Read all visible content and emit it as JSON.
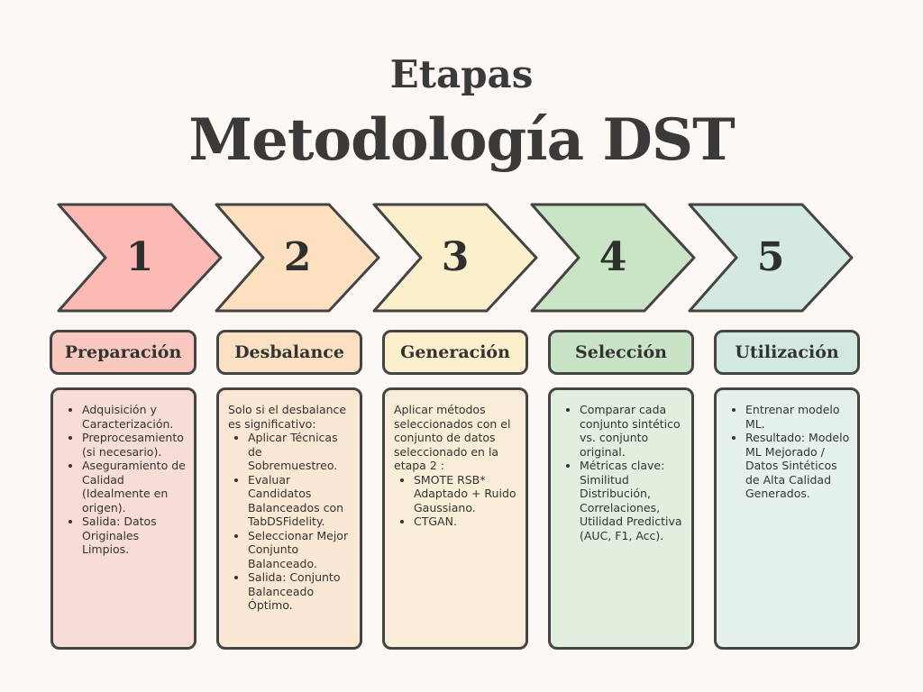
{
  "header": {
    "title_small": "Etapas",
    "title_big": "Metodología DST"
  },
  "stages": [
    {
      "number": "1",
      "label": "Preparación",
      "arrow_color": "#fbbab4",
      "label_color": "#f9c9c0",
      "card_color": "#f8dcd6",
      "intro": "",
      "items": [
        "Adquisición y Caracterización.",
        "Preprocesamiento (si necesario).",
        "Aseguramiento de Calidad (Idealmente en origen).",
        "Salida: Datos Originales Limpios."
      ]
    },
    {
      "number": "2",
      "label": "Desbalance",
      "arrow_color": "#fde0bf",
      "label_color": "#fbe0c2",
      "card_color": "#fbe8d4",
      "intro": "Solo si el desbalance es significativo:",
      "items": [
        "Aplicar Técnicas de Sobremuestreo.",
        "Evaluar Candidatos Balanceados con TabDSFidelity.",
        "Seleccionar Mejor Conjunto Balanceado.",
        "Salida: Conjunto Balanceado Óptimo."
      ]
    },
    {
      "number": "3",
      "label": "Generación",
      "arrow_color": "#fbf0cb",
      "label_color": "#fbefcc",
      "card_color": "#f8eed8",
      "intro": "Aplicar métodos seleccionados con el conjunto de datos seleccionado en la etapa 2 :",
      "items": [
        "SMOTE RSB* Adaptado + Ruido Gaussiano.",
        "CTGAN."
      ]
    },
    {
      "number": "4",
      "label": "Selección",
      "arrow_color": "#c9e5c5",
      "label_color": "#c9e3c6",
      "card_color": "#e2efdf",
      "intro": "",
      "items": [
        "Comparar cada conjunto sintético vs. conjunto original.",
        "Métricas clave: Similitud Distribución, Correlaciones, Utilidad Predictiva (AUC, F1, Acc)."
      ]
    },
    {
      "number": "5",
      "label": "Utilización",
      "arrow_color": "#d3e9e2",
      "label_color": "#d4e8e2",
      "card_color": "#e5f1ee",
      "intro": "",
      "items": [
        "Entrenar modelo ML.",
        "Resultado: Modelo ML Mejorado / Datos Sintéticos de Alta Calidad Generados."
      ]
    }
  ]
}
